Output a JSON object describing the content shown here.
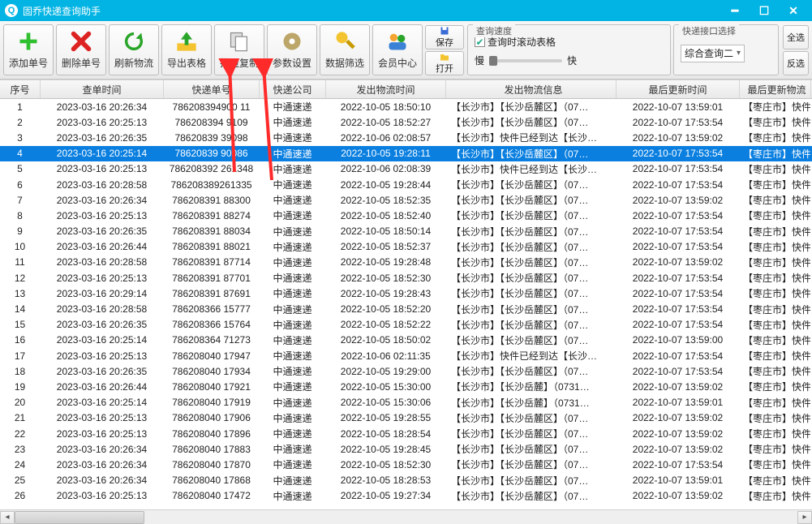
{
  "window": {
    "title": "固乔快递查询助手"
  },
  "toolbar": {
    "add": "添加单号",
    "del": "删除单号",
    "refresh": "刷新物流",
    "export": "导出表格",
    "copy": "批量复制",
    "settings": "参数设置",
    "filter": "数据筛选",
    "member": "会员中心",
    "save": "保存",
    "open": "打开"
  },
  "speed": {
    "title": "查询速度",
    "slow": "慢",
    "fast": "快",
    "scroll_check": "查询时滚动表格"
  },
  "iface": {
    "title": "快递接口选择",
    "value": "综合查询二",
    "all": "全选",
    "inv": "反选"
  },
  "columns": [
    "序号",
    "查单时间",
    "快递单号",
    "快递公司",
    "发出物流时间",
    "发出物流信息",
    "最后更新时间",
    "最后更新物流"
  ],
  "rows": [
    {
      "i": 1,
      "t": "2023-03-16 20:26:34",
      "n": "786208394900 11",
      "co": "中通速递",
      "s": "2022-10-05 18:50:10",
      "info": "【长沙市】【长沙岳麓区】（07…",
      "u": "2022-10-07 13:59:01",
      "last": "【枣庄市】快件"
    },
    {
      "i": 2,
      "t": "2023-03-16 20:25:13",
      "n": "786208394 9109",
      "co": "中通速递",
      "s": "2022-10-05 18:52:27",
      "info": "【长沙市】【长沙岳麓区】（07…",
      "u": "2022-10-07 17:53:54",
      "last": "【枣庄市】快件"
    },
    {
      "i": 3,
      "t": "2023-03-16 20:26:35",
      "n": "78620839 39098",
      "co": "中通速递",
      "s": "2022-10-06 02:08:57",
      "info": "【长沙市】快件已经到达【长沙…",
      "u": "2022-10-07 13:59:02",
      "last": "【枣庄市】快件"
    },
    {
      "i": 4,
      "t": "2023-03-16 20:25:14",
      "n": "78620839 90086",
      "co": "中通速递",
      "s": "2022-10-05 19:28:11",
      "info": "【长沙市】【长沙岳麓区】（07…",
      "u": "2022-10-07 17:53:54",
      "last": "【枣庄市】快件",
      "sel": true
    },
    {
      "i": 5,
      "t": "2023-03-16 20:25:13",
      "n": "786208392 261348",
      "co": "中通速递",
      "s": "2022-10-06 02:08:39",
      "info": "【长沙市】快件已经到达【长沙…",
      "u": "2022-10-07 17:53:54",
      "last": "【枣庄市】快件"
    },
    {
      "i": 6,
      "t": "2023-03-16 20:28:58",
      "n": "786208389261335",
      "co": "中通速递",
      "s": "2022-10-05 19:28:44",
      "info": "【长沙市】【长沙岳麓区】（07…",
      "u": "2022-10-07 17:53:54",
      "last": "【枣庄市】快件"
    },
    {
      "i": 7,
      "t": "2023-03-16 20:26:34",
      "n": "786208391 88300",
      "co": "中通速递",
      "s": "2022-10-05 18:52:35",
      "info": "【长沙市】【长沙岳麓区】（07…",
      "u": "2022-10-07 13:59:02",
      "last": "【枣庄市】快件"
    },
    {
      "i": 8,
      "t": "2023-03-16 20:25:13",
      "n": "786208391 88274",
      "co": "中通速递",
      "s": "2022-10-05 18:52:40",
      "info": "【长沙市】【长沙岳麓区】（07…",
      "u": "2022-10-07 17:53:54",
      "last": "【枣庄市】快件"
    },
    {
      "i": 9,
      "t": "2023-03-16 20:26:35",
      "n": "786208391 88034",
      "co": "中通速递",
      "s": "2022-10-05 18:50:14",
      "info": "【长沙市】【长沙岳麓区】（07…",
      "u": "2022-10-07 17:53:54",
      "last": "【枣庄市】快件"
    },
    {
      "i": 10,
      "t": "2023-03-16 20:26:44",
      "n": "786208391 88021",
      "co": "中通速递",
      "s": "2022-10-05 18:52:37",
      "info": "【长沙市】【长沙岳麓区】（07…",
      "u": "2022-10-07 17:53:54",
      "last": "【枣庄市】快件"
    },
    {
      "i": 11,
      "t": "2023-03-16 20:28:58",
      "n": "786208391 87714",
      "co": "中通速递",
      "s": "2022-10-05 19:28:48",
      "info": "【长沙市】【长沙岳麓区】（07…",
      "u": "2022-10-07 13:59:02",
      "last": "【枣庄市】快件"
    },
    {
      "i": 12,
      "t": "2023-03-16 20:25:13",
      "n": "786208391 87701",
      "co": "中通速递",
      "s": "2022-10-05 18:52:30",
      "info": "【长沙市】【长沙岳麓区】（07…",
      "u": "2022-10-07 17:53:54",
      "last": "【枣庄市】快件"
    },
    {
      "i": 13,
      "t": "2023-03-16 20:29:14",
      "n": "786208391 87691",
      "co": "中通速递",
      "s": "2022-10-05 19:28:43",
      "info": "【长沙市】【长沙岳麓区】（07…",
      "u": "2022-10-07 17:53:54",
      "last": "【枣庄市】快件"
    },
    {
      "i": 14,
      "t": "2023-03-16 20:28:58",
      "n": "786208366 15777",
      "co": "中通速递",
      "s": "2022-10-05 18:52:20",
      "info": "【长沙市】【长沙岳麓区】（07…",
      "u": "2022-10-07 17:53:54",
      "last": "【枣庄市】快件"
    },
    {
      "i": 15,
      "t": "2023-03-16 20:26:35",
      "n": "786208366 15764",
      "co": "中通速递",
      "s": "2022-10-05 18:52:22",
      "info": "【长沙市】【长沙岳麓区】（07…",
      "u": "2022-10-07 17:53:54",
      "last": "【枣庄市】快件"
    },
    {
      "i": 16,
      "t": "2023-03-16 20:25:14",
      "n": "786208364 71273",
      "co": "中通速递",
      "s": "2022-10-05 18:50:02",
      "info": "【长沙市】【长沙岳麓区】（07…",
      "u": "2022-10-07 13:59:00",
      "last": "【枣庄市】快件"
    },
    {
      "i": 17,
      "t": "2023-03-16 20:25:13",
      "n": "786208040 17947",
      "co": "中通速递",
      "s": "2022-10-06 02:11:35",
      "info": "【长沙市】快件已经到达【长沙…",
      "u": "2022-10-07 17:53:54",
      "last": "【枣庄市】快件"
    },
    {
      "i": 18,
      "t": "2023-03-16 20:26:35",
      "n": "786208040 17934",
      "co": "中通速递",
      "s": "2022-10-05 19:29:00",
      "info": "【长沙市】【长沙岳麓区】（07…",
      "u": "2022-10-07 17:53:54",
      "last": "【枣庄市】快件"
    },
    {
      "i": 19,
      "t": "2023-03-16 20:26:44",
      "n": "786208040 17921",
      "co": "中通速递",
      "s": "2022-10-05 15:30:00",
      "info": "【长沙市】【长沙岳麓】（0731…",
      "u": "2022-10-07 13:59:02",
      "last": "【枣庄市】快件"
    },
    {
      "i": 20,
      "t": "2023-03-16 20:25:14",
      "n": "786208040 17919",
      "co": "中通速递",
      "s": "2022-10-05 15:30:06",
      "info": "【长沙市】【长沙岳麓】（0731…",
      "u": "2022-10-07 13:59:01",
      "last": "【枣庄市】快件"
    },
    {
      "i": 21,
      "t": "2023-03-16 20:25:13",
      "n": "786208040 17906",
      "co": "中通速递",
      "s": "2022-10-05 19:28:55",
      "info": "【长沙市】【长沙岳麓区】（07…",
      "u": "2022-10-07 13:59:02",
      "last": "【枣庄市】快件"
    },
    {
      "i": 22,
      "t": "2023-03-16 20:25:13",
      "n": "786208040 17896",
      "co": "中通速递",
      "s": "2022-10-05 18:28:54",
      "info": "【长沙市】【长沙岳麓区】（07…",
      "u": "2022-10-07 13:59:02",
      "last": "【枣庄市】快件"
    },
    {
      "i": 23,
      "t": "2023-03-16 20:26:34",
      "n": "786208040 17883",
      "co": "中通速递",
      "s": "2022-10-05 19:28:45",
      "info": "【长沙市】【长沙岳麓区】（07…",
      "u": "2022-10-07 13:59:02",
      "last": "【枣庄市】快件"
    },
    {
      "i": 24,
      "t": "2023-03-16 20:26:34",
      "n": "786208040 17870",
      "co": "中通速递",
      "s": "2022-10-05 18:52:30",
      "info": "【长沙市】【长沙岳麓区】（07…",
      "u": "2022-10-07 17:53:54",
      "last": "【枣庄市】快件"
    },
    {
      "i": 25,
      "t": "2023-03-16 20:26:34",
      "n": "786208040 17868",
      "co": "中通速递",
      "s": "2022-10-05 18:28:53",
      "info": "【长沙市】【长沙岳麓区】（07…",
      "u": "2022-10-07 13:59:01",
      "last": "【枣庄市】快件"
    },
    {
      "i": 26,
      "t": "2023-03-16 20:25:13",
      "n": "786208040 17472",
      "co": "中通速递",
      "s": "2022-10-05 19:27:34",
      "info": "【长沙市】【长沙岳麓区】（07…",
      "u": "2022-10-07 13:59:02",
      "last": "【枣庄市】快件"
    }
  ],
  "arrow_color": "#ff2a2a"
}
